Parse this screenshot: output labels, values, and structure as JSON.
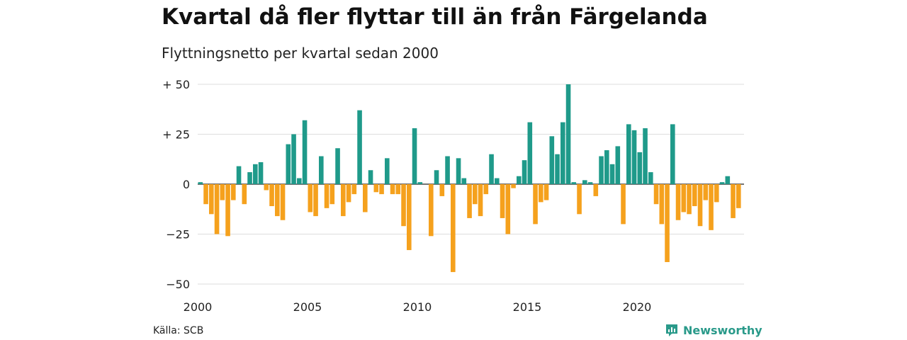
{
  "title": "Kvartal då fler flyttar till än från Färgelanda",
  "subtitle": "Flyttningsnetto per kvartal sedan 2000",
  "source": "Källa: SCB",
  "brand": "Newsworthy",
  "colors": {
    "positive": "#1f9a8a",
    "negative": "#f5a11d",
    "grid": "#dddddd",
    "axis": "#222222"
  },
  "chart_data": {
    "type": "bar",
    "ylim": [
      -50,
      50
    ],
    "yticks": [
      {
        "value": 50,
        "label": "+ 50"
      },
      {
        "value": 25,
        "label": "+ 25"
      },
      {
        "value": 0,
        "label": "0"
      },
      {
        "value": -25,
        "label": "−25"
      },
      {
        "value": -50,
        "label": "−50"
      }
    ],
    "xticks": [
      {
        "year": 2000,
        "label": "2000"
      },
      {
        "year": 2005,
        "label": "2005"
      },
      {
        "year": 2010,
        "label": "2010"
      },
      {
        "year": 2015,
        "label": "2015"
      },
      {
        "year": 2020,
        "label": "2020"
      }
    ],
    "start_year": 2000,
    "values": [
      1,
      -10,
      -15,
      -25,
      -8,
      -26,
      -8,
      9,
      -10,
      6,
      10,
      11,
      -3,
      -11,
      -16,
      -18,
      20,
      25,
      3,
      32,
      -14,
      -16,
      14,
      -12,
      -10,
      18,
      -16,
      -9,
      -5,
      37,
      -14,
      7,
      -4,
      -5,
      13,
      -5,
      -5,
      -21,
      -33,
      28,
      1,
      0,
      -26,
      7,
      -6,
      14,
      -44,
      13,
      3,
      -17,
      -10,
      -16,
      -5,
      15,
      3,
      -17,
      -25,
      -2,
      4,
      12,
      31,
      -20,
      -9,
      -8,
      24,
      15,
      31,
      50,
      1,
      -15,
      2,
      1,
      -6,
      14,
      17,
      10,
      19,
      -20,
      30,
      27,
      16,
      28,
      6,
      -10,
      -20,
      -39,
      30,
      -18,
      -14,
      -15,
      -11,
      -21,
      -8,
      -23,
      -9,
      1,
      4,
      -17,
      -12
    ]
  }
}
